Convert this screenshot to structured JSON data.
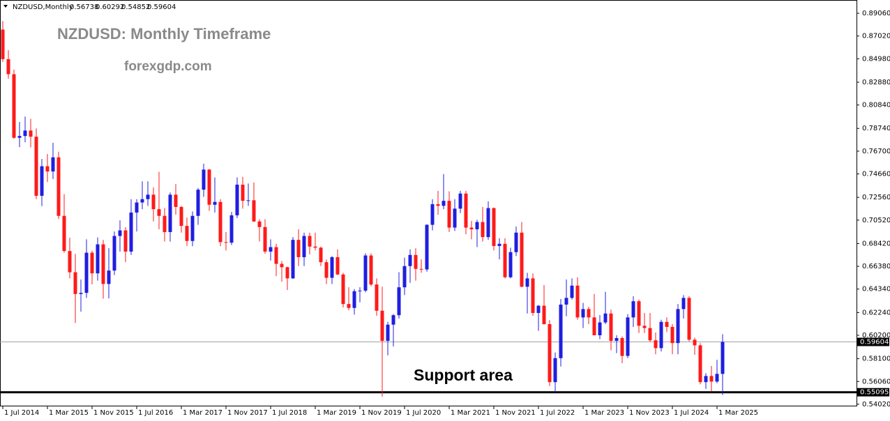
{
  "chart_data": {
    "type": "candlestick",
    "title": "NZDUSD: Monthly Timeframe",
    "subtitle": "forexgdp.com",
    "symbol": "NZDUSD,Monthly",
    "categories": [
      "1 Jul 2014",
      null,
      null,
      null,
      null,
      null,
      null,
      null,
      "1 Mar 2015",
      null,
      null,
      null,
      null,
      null,
      null,
      null,
      "1 Nov 2015",
      null,
      null,
      null,
      null,
      null,
      null,
      null,
      "1 Jul 2016",
      null,
      null,
      null,
      null,
      null,
      null,
      null,
      "1 Mar 2017",
      null,
      null,
      null,
      null,
      null,
      null,
      null,
      "1 Nov 2017",
      null,
      null,
      null,
      null,
      null,
      null,
      null,
      "1 Jul 2018",
      null,
      null,
      null,
      null,
      null,
      null,
      null,
      "1 Mar 2019",
      null,
      null,
      null,
      null,
      null,
      null,
      null,
      "1 Nov 2019",
      null,
      null,
      null,
      null,
      null,
      null,
      null,
      "1 Jul 2020",
      null,
      null,
      null,
      null,
      null,
      null,
      null,
      "1 Mar 2021",
      null,
      null,
      null,
      null,
      null,
      null,
      null,
      "1 Nov 2021",
      null,
      null,
      null,
      null,
      null,
      null,
      null,
      "1 Jul 2022",
      null,
      null,
      null,
      null,
      null,
      null,
      null,
      "1 Mar 2023",
      null,
      null,
      null,
      null,
      null,
      null,
      null,
      "1 Nov 2023",
      null,
      null,
      null,
      null,
      null,
      null,
      null,
      "1 Jul 2024",
      null,
      null,
      null,
      null,
      null,
      null,
      null,
      "1 Mar 2025",
      null
    ],
    "open": [
      0.876,
      0.8495,
      0.836,
      0.779,
      0.7806,
      0.7855,
      0.78,
      0.727,
      0.7535,
      0.7488,
      0.7615,
      0.709,
      0.6775,
      0.6585,
      0.639,
      0.64,
      0.676,
      0.6575,
      0.6835,
      0.648,
      0.66,
      0.691,
      0.696,
      0.677,
      0.712,
      0.721,
      0.724,
      0.728,
      0.715,
      0.709,
      0.6945,
      0.728,
      0.717,
      0.7,
      0.6865,
      0.709,
      0.7325,
      0.7505,
      0.719,
      0.7215,
      0.6855,
      0.685,
      0.7095,
      0.737,
      0.7225,
      0.723,
      0.704,
      0.699,
      0.677,
      0.681,
      0.666,
      0.663,
      0.653,
      0.6875,
      0.672,
      0.691,
      0.6815,
      0.6805,
      0.6675,
      0.6535,
      0.672,
      0.6565,
      0.63,
      0.6265,
      0.6415,
      0.642,
      0.6735,
      0.6475,
      0.624,
      0.597,
      0.6115,
      0.62,
      0.645,
      0.664,
      0.674,
      0.6615,
      0.661,
      0.701,
      0.7195,
      0.718,
      0.7225,
      0.6985,
      0.7155,
      0.729,
      0.6985,
      0.697,
      0.7035,
      0.69,
      0.716,
      0.682,
      0.684,
      0.654,
      0.6765,
      0.694,
      0.6455,
      0.653,
      0.622,
      0.6285,
      0.612,
      0.56,
      0.5815,
      0.6295,
      0.6355,
      0.6465,
      0.618,
      0.6255,
      0.618,
      0.602,
      0.6135,
      0.6215,
      0.597,
      0.5995,
      0.5835,
      0.618,
      0.6325,
      0.6105,
      0.6085,
      0.5975,
      0.5905,
      0.614,
      0.6095,
      0.595,
      0.6255,
      0.6355,
      0.598,
      0.593,
      0.56,
      0.5655,
      0.5605,
      0.56738
    ],
    "high": [
      0.8836,
      0.8575,
      0.84,
      0.7932,
      0.798,
      0.796,
      0.7874,
      0.76,
      0.7645,
      0.7745,
      0.7665,
      0.7285,
      0.6895,
      0.675,
      0.652,
      0.688,
      0.6778,
      0.6897,
      0.6875,
      0.68,
      0.695,
      0.705,
      0.699,
      0.724,
      0.724,
      0.74,
      0.74,
      0.7345,
      0.7485,
      0.716,
      0.73,
      0.7375,
      0.718,
      0.7075,
      0.713,
      0.734,
      0.7558,
      0.751,
      0.7435,
      0.724,
      0.6945,
      0.7125,
      0.7435,
      0.744,
      0.738,
      0.739,
      0.706,
      0.706,
      0.688,
      0.684,
      0.6685,
      0.6635,
      0.69,
      0.697,
      0.694,
      0.694,
      0.694,
      0.6815,
      0.67,
      0.673,
      0.679,
      0.658,
      0.645,
      0.6435,
      0.645,
      0.6755,
      0.6755,
      0.653,
      0.6455,
      0.614,
      0.621,
      0.6585,
      0.6715,
      0.679,
      0.68,
      0.67,
      0.7015,
      0.724,
      0.7315,
      0.7465,
      0.731,
      0.724,
      0.7315,
      0.7315,
      0.7045,
      0.7055,
      0.717,
      0.722,
      0.7165,
      0.689,
      0.689,
      0.6805,
      0.6995,
      0.7035,
      0.658,
      0.6575,
      0.629,
      0.647,
      0.6155,
      0.5865,
      0.6345,
      0.652,
      0.653,
      0.654,
      0.631,
      0.6275,
      0.639,
      0.62,
      0.641,
      0.625,
      0.602,
      0.601,
      0.621,
      0.637,
      0.634,
      0.622,
      0.622,
      0.6045,
      0.616,
      0.618,
      0.612,
      0.63,
      0.638,
      0.637,
      0.6,
      0.595,
      0.568,
      0.5745,
      0.58,
      0.60292
    ],
    "low": [
      0.847,
      0.832,
      0.778,
      0.7706,
      0.775,
      0.7704,
      0.724,
      0.7177,
      0.7393,
      0.742,
      0.7062,
      0.676,
      0.653,
      0.613,
      0.6232,
      0.6355,
      0.6476,
      0.651,
      0.6348,
      0.635,
      0.656,
      0.677,
      0.6675,
      0.674,
      0.695,
      0.715,
      0.718,
      0.704,
      0.697,
      0.686,
      0.686,
      0.71,
      0.694,
      0.682,
      0.6818,
      0.701,
      0.726,
      0.7135,
      0.712,
      0.6818,
      0.678,
      0.683,
      0.707,
      0.7155,
      0.718,
      0.7035,
      0.686,
      0.675,
      0.669,
      0.655,
      0.65,
      0.6425,
      0.6525,
      0.664,
      0.664,
      0.6745,
      0.678,
      0.664,
      0.648,
      0.648,
      0.656,
      0.627,
      0.6245,
      0.6205,
      0.6315,
      0.6405,
      0.646,
      0.6195,
      0.547,
      0.584,
      0.592,
      0.617,
      0.638,
      0.649,
      0.651,
      0.658,
      0.659,
      0.696,
      0.71,
      0.715,
      0.6945,
      0.6955,
      0.7115,
      0.6925,
      0.688,
      0.681,
      0.686,
      0.6875,
      0.678,
      0.67,
      0.653,
      0.653,
      0.673,
      0.645,
      0.6215,
      0.6195,
      0.606,
      0.6115,
      0.5565,
      0.551,
      0.574,
      0.619,
      0.634,
      0.616,
      0.6085,
      0.612,
      0.602,
      0.5985,
      0.612,
      0.5885,
      0.586,
      0.577,
      0.5815,
      0.6095,
      0.604,
      0.604,
      0.596,
      0.585,
      0.5875,
      0.605,
      0.585,
      0.585,
      0.617,
      0.5965,
      0.5845,
      0.558,
      0.554,
      0.552,
      0.559,
      0.54852
    ],
    "close": [
      0.8495,
      0.836,
      0.779,
      0.7806,
      0.7855,
      0.78,
      0.727,
      0.7535,
      0.7488,
      0.7615,
      0.709,
      0.6775,
      0.6585,
      0.639,
      0.64,
      0.676,
      0.6575,
      0.6835,
      0.648,
      0.66,
      0.691,
      0.696,
      0.677,
      0.712,
      0.721,
      0.724,
      0.728,
      0.715,
      0.709,
      0.6945,
      0.728,
      0.717,
      0.7,
      0.6865,
      0.709,
      0.7325,
      0.7505,
      0.719,
      0.7215,
      0.6855,
      0.685,
      0.7095,
      0.737,
      0.7225,
      0.723,
      0.704,
      0.699,
      0.677,
      0.681,
      0.666,
      0.663,
      0.653,
      0.6875,
      0.672,
      0.691,
      0.6815,
      0.6805,
      0.6675,
      0.6535,
      0.672,
      0.6565,
      0.63,
      0.6265,
      0.6415,
      0.642,
      0.6735,
      0.6475,
      0.624,
      0.597,
      0.6115,
      0.62,
      0.645,
      0.664,
      0.674,
      0.6615,
      0.661,
      0.701,
      0.7195,
      0.718,
      0.7225,
      0.6985,
      0.7155,
      0.729,
      0.6985,
      0.697,
      0.7035,
      0.69,
      0.716,
      0.682,
      0.684,
      0.654,
      0.6765,
      0.694,
      0.6455,
      0.653,
      0.622,
      0.6285,
      0.612,
      0.56,
      0.5815,
      0.6295,
      0.6355,
      0.6465,
      0.618,
      0.6255,
      0.618,
      0.602,
      0.6135,
      0.6215,
      0.597,
      0.5995,
      0.5835,
      0.618,
      0.6325,
      0.6105,
      0.6085,
      0.5975,
      0.5905,
      0.614,
      0.6095,
      0.595,
      0.6255,
      0.6355,
      0.598,
      0.593,
      0.56,
      0.5655,
      0.5605,
      0.5674,
      0.59604
    ],
    "up_color": "#1f1fe0",
    "down_color": "#ff1a1a",
    "ylim": [
      0.5389,
      0.9025
    ],
    "yticks": [
      {
        "value": 0.8906,
        "label": "0.89060"
      },
      {
        "value": 0.8702,
        "label": "0.87020"
      },
      {
        "value": 0.8498,
        "label": "0.84980"
      },
      {
        "value": 0.8288,
        "label": "0.82880"
      },
      {
        "value": 0.8084,
        "label": "0.80840"
      },
      {
        "value": 0.7874,
        "label": "0.78740"
      },
      {
        "value": 0.767,
        "label": "0.76700"
      },
      {
        "value": 0.7466,
        "label": "0.74660"
      },
      {
        "value": 0.7256,
        "label": "0.72560"
      },
      {
        "value": 0.7052,
        "label": "0.70520"
      },
      {
        "value": 0.6842,
        "label": "0.68420"
      },
      {
        "value": 0.6638,
        "label": "0.66380"
      },
      {
        "value": 0.6434,
        "label": "0.64340"
      },
      {
        "value": 0.6224,
        "label": "0.62240"
      },
      {
        "value": 0.602,
        "label": "0.60200"
      },
      {
        "value": 0.581,
        "label": "0.58100"
      },
      {
        "value": 0.5606,
        "label": "0.56060"
      },
      {
        "value": 0.5402,
        "label": "0.54020"
      }
    ],
    "support": {
      "value": 0.55095,
      "label": "Support area"
    }
  }
}
